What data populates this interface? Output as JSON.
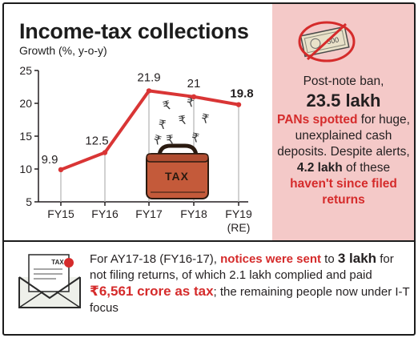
{
  "chart_data": {
    "type": "line",
    "title": "Income-tax collections",
    "subtitle": "Growth (%, y-o-y)",
    "categories": [
      "FY15",
      "FY16",
      "FY17",
      "FY18",
      "FY19"
    ],
    "category_sublabels": [
      "",
      "",
      "",
      "",
      "(RE)"
    ],
    "values": [
      9.9,
      12.5,
      21.9,
      21,
      19.8
    ],
    "value_labels": [
      "9.9",
      "12.5",
      "21.9",
      "21",
      "19.8"
    ],
    "yticks": [
      5,
      10,
      15,
      20,
      25
    ],
    "ytick_labels": [
      "5",
      "10",
      "15",
      "20",
      "25"
    ],
    "ylim": [
      5,
      25
    ],
    "line_color": "#d93535",
    "grid": false,
    "legend": "none"
  },
  "decor": {
    "rupee_glyph": "₹",
    "bag_label": "TAX",
    "envelope_label": "TAX",
    "note_label": "500"
  },
  "sidebar": {
    "line1": "Post-note ban,",
    "big": "23.5 lakh",
    "pans": "PANs spotted",
    "rest1": " for huge, unexplained cash deposits. Despite alerts, ",
    "count": "4.2 lakh",
    "rest2": " of these ",
    "not_filed": "haven't since filed returns"
  },
  "footer": {
    "part1": "For AY17-18 (FY16-17), ",
    "notices": "notices were sent",
    "part2": " to ",
    "three_lakh": "3 lakh",
    "part3": " for not filing returns, of which 2.1 lakh complied and paid ",
    "amount": "₹6,561 crore as tax",
    "part4": "; the remaining people now under I-T focus"
  },
  "colors": {
    "accent_red": "#d52b2b",
    "panel_pink": "#f4c9c8",
    "bag_brown": "#c45a3a"
  }
}
